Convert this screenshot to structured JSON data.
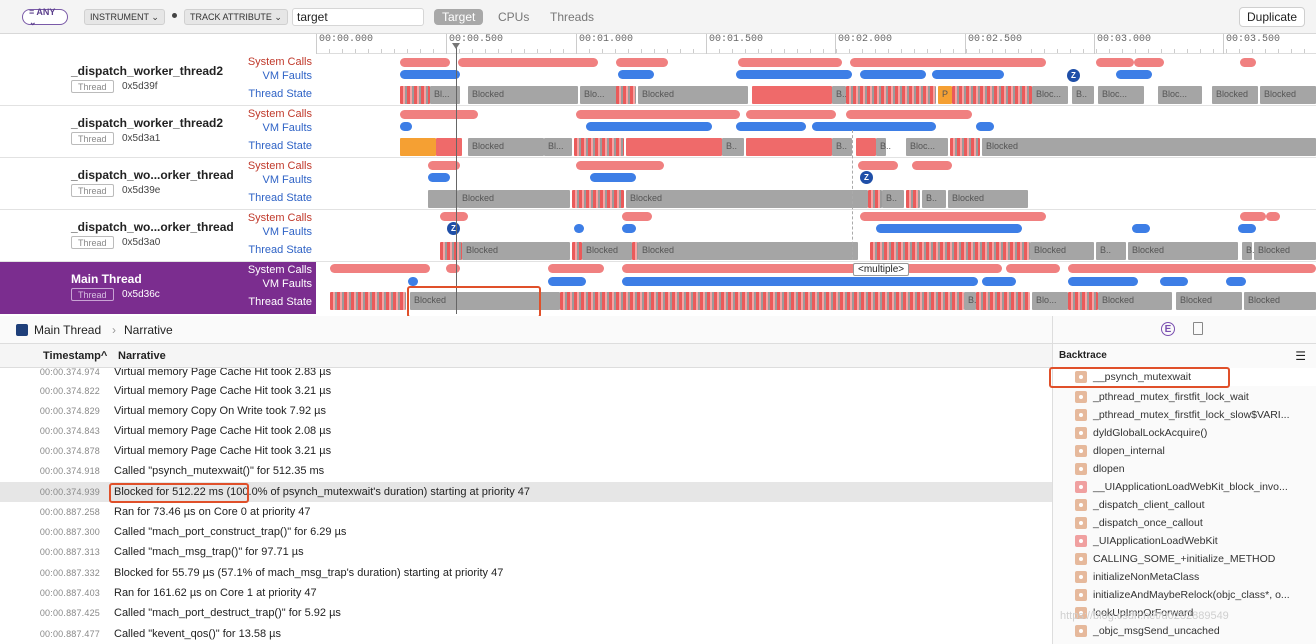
{
  "filter": {
    "any": "≡ ANY ⌄",
    "instrument": "INSTRUMENT ⌄",
    "track_attribute": "TRACK ATTRIBUTE ⌄",
    "search_value": "target"
  },
  "scope_tabs": [
    "Target",
    "CPUs",
    "Threads"
  ],
  "duplicate_label": "Duplicate",
  "ruler": [
    "00:00.000",
    "00:00.500",
    "00:01.000",
    "00:01.500",
    "00:02.000",
    "00:02.500",
    "00:03.000",
    "00:03.500"
  ],
  "lanes": [
    "System Calls",
    "VM Faults",
    "Thread State"
  ],
  "thread_badge": "Thread",
  "threads": [
    {
      "name": "_dispatch_worker_thread2",
      "id": "0x5d39f"
    },
    {
      "name": "_dispatch_worker_thread2",
      "id": "0x5d3a1"
    },
    {
      "name": "_dispatch_wo...orker_thread",
      "id": "0x5d39e"
    },
    {
      "name": "_dispatch_wo...orker_thread",
      "id": "0x5d3a0"
    },
    {
      "name": "Main Thread",
      "id": "0x5d36c"
    }
  ],
  "state_labels": {
    "blocked": "Blocked",
    "bl": "Bl...",
    "blo": "Blo...",
    "bloc": "Bloc...",
    "b": "B..",
    "p": "P",
    "z": "Z",
    "multiple": "<multiple>"
  },
  "breadcrumb": {
    "thread": "Main Thread",
    "view": "Narrative"
  },
  "columns": {
    "timestamp": "Timestamp^",
    "narrative": "Narrative"
  },
  "narrative_rows": [
    {
      "ts": "00:00.374.974",
      "text": "Virtual memory Page Cache Hit took 2.83 µs"
    },
    {
      "ts": "00:00.374.822",
      "text": "Virtual memory Page Cache Hit took 3.21 µs"
    },
    {
      "ts": "00:00.374.829",
      "text": "Virtual memory Copy On Write took 7.92 µs"
    },
    {
      "ts": "00:00.374.843",
      "text": "Virtual memory Page Cache Hit took 2.08 µs"
    },
    {
      "ts": "00:00.374.878",
      "text": "Virtual memory Page Cache Hit took 3.21 µs"
    },
    {
      "ts": "00:00.374.918",
      "text": "Called \"psynch_mutexwait()\" for 512.35 ms"
    },
    {
      "ts": "00:00.374.939",
      "text": "Blocked for 512.22 ms (100.0% of psynch_mutexwait's duration) starting at priority 47"
    },
    {
      "ts": "00:00.887.258",
      "text": "Ran for 73.46 µs on Core 0 at priority 47"
    },
    {
      "ts": "00:00.887.300",
      "text": "Called \"mach_port_construct_trap()\" for 6.29 µs"
    },
    {
      "ts": "00:00.887.313",
      "text": "Called \"mach_msg_trap()\" for 97.71 µs"
    },
    {
      "ts": "00:00.887.332",
      "text": "Blocked for 55.79 µs (57.1% of mach_msg_trap's duration) starting at priority 47"
    },
    {
      "ts": "00:00.887.403",
      "text": "Ran for 161.62 µs on Core 1 at priority 47"
    },
    {
      "ts": "00:00.887.425",
      "text": "Called \"mach_port_destruct_trap()\" for 5.92 µs"
    },
    {
      "ts": "00:00.887.477",
      "text": "Called \"kevent_qos()\" for 13.58 µs"
    }
  ],
  "backtrace_title": "Backtrace",
  "backtrace": [
    "__psynch_mutexwait",
    "_pthread_mutex_firstfit_lock_wait",
    "_pthread_mutex_firstfit_lock_slow$VARI...",
    "dyldGlobalLockAcquire()",
    "dlopen_internal",
    "dlopen",
    "__UIApplicationLoadWebKit_block_invo...",
    "_dispatch_client_callout",
    "_dispatch_once_callout",
    "_UIApplicationLoadWebKit",
    "CALLING_SOME_+initialize_METHOD",
    "initializeNonMetaClass",
    "initializeAndMaybeRelock(objc_class*, o...",
    "lookUpImpOrForward",
    "_objc_msgSend_uncached"
  ],
  "watermark": "https://blog.csdn.net/u0282889549",
  "colors": {
    "main_thread": "#7b2d8f",
    "highlight": "#e0502a",
    "syscall": "#f08080",
    "vmfault": "#3d7ee6"
  }
}
